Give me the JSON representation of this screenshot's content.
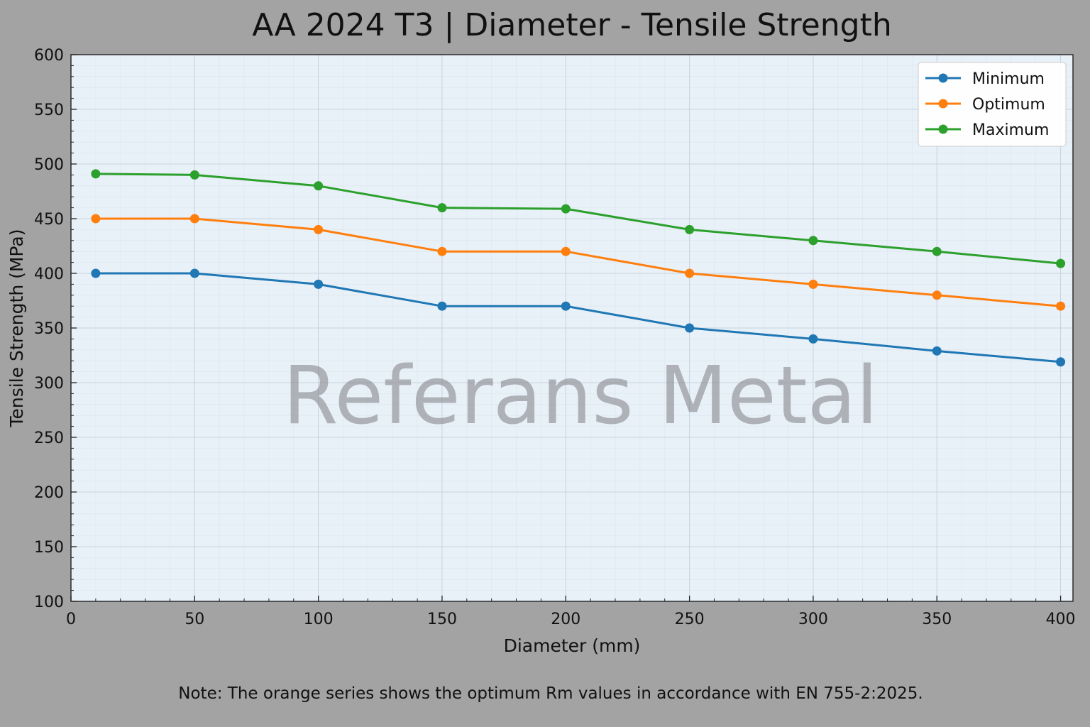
{
  "chart_data": {
    "type": "line",
    "title": "AA 2024 T3 | Diameter - Tensile Strength",
    "xlabel": "Diameter (mm)",
    "ylabel": "Tensile Strength (MPa)",
    "x": [
      10,
      50,
      100,
      150,
      200,
      250,
      300,
      350,
      400
    ],
    "xlim": [
      0,
      405
    ],
    "ylim": [
      100,
      600
    ],
    "xticks": [
      0,
      50,
      100,
      150,
      200,
      250,
      300,
      350,
      400
    ],
    "yticks": [
      100,
      150,
      200,
      250,
      300,
      350,
      400,
      450,
      500,
      550,
      600
    ],
    "grid": true,
    "legend_position": "top-right",
    "series": [
      {
        "name": "Minimum",
        "color": "#1f77b4",
        "values": [
          400,
          400,
          390,
          370,
          370,
          350,
          340,
          329,
          319
        ]
      },
      {
        "name": "Optimum",
        "color": "#ff7f0e",
        "values": [
          450,
          450,
          440,
          420,
          420,
          400,
          390,
          380,
          370
        ]
      },
      {
        "name": "Maximum",
        "color": "#2ca02c",
        "values": [
          491,
          490,
          480,
          460,
          459,
          440,
          430,
          420,
          409
        ]
      }
    ],
    "watermark": "Referans Metal",
    "note": "Note: The orange series shows the optimum Rm values in accordance with EN 755-2:2025."
  },
  "colors": {
    "page_background": "#a3a3a3",
    "plot_background": "#e8f0f8",
    "grid": "#c9d3de"
  }
}
